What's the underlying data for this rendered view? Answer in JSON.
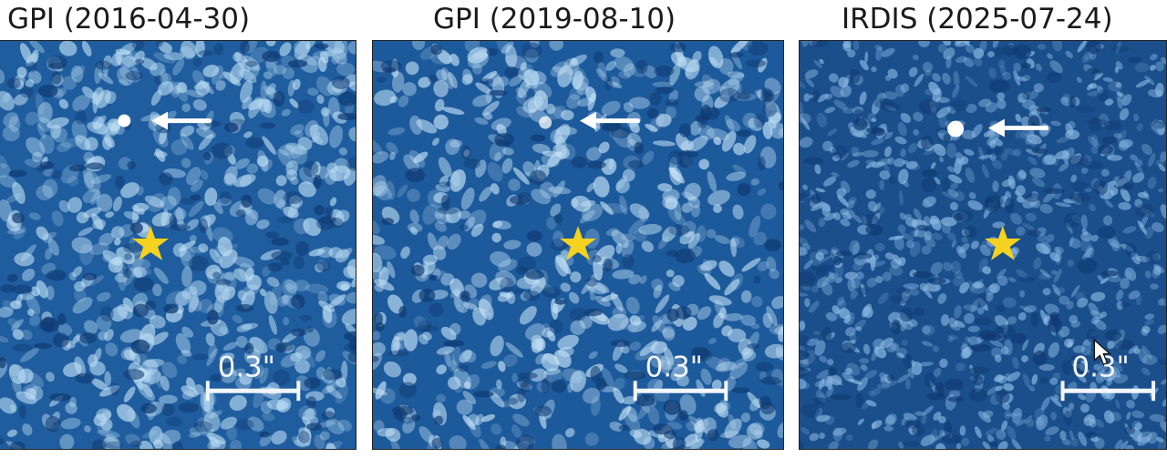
{
  "panels": [
    {
      "id": "gpi-2016",
      "title": "GPI (2016-04-30)",
      "scale_label": "0.3\"",
      "background_color": "#1f5d9e",
      "blob_color": "#bfe0f6",
      "star_color": "#f5d21f",
      "companion_color": "#ffffff",
      "arrow_color": "#ffffff"
    },
    {
      "id": "gpi-2019",
      "title": "GPI (2019-08-10)",
      "scale_label": "0.3\"",
      "background_color": "#1d5a9b",
      "blob_color": "#c4e2f7",
      "star_color": "#f5d21f",
      "companion_color": "#ffffff",
      "arrow_color": "#ffffff"
    },
    {
      "id": "irdis-2025",
      "title": "IRDIS (2025-07-24)",
      "scale_label": "0.3\"",
      "background_color": "#1b4f8c",
      "blob_color": "#8fbde6",
      "star_color": "#f5d21f",
      "companion_color": "#ffffff",
      "arrow_color": "#ffffff"
    }
  ],
  "icons": {
    "star": "star-icon",
    "arrow": "arrow-left-icon",
    "cursor": "mouse-pointer-icon"
  }
}
